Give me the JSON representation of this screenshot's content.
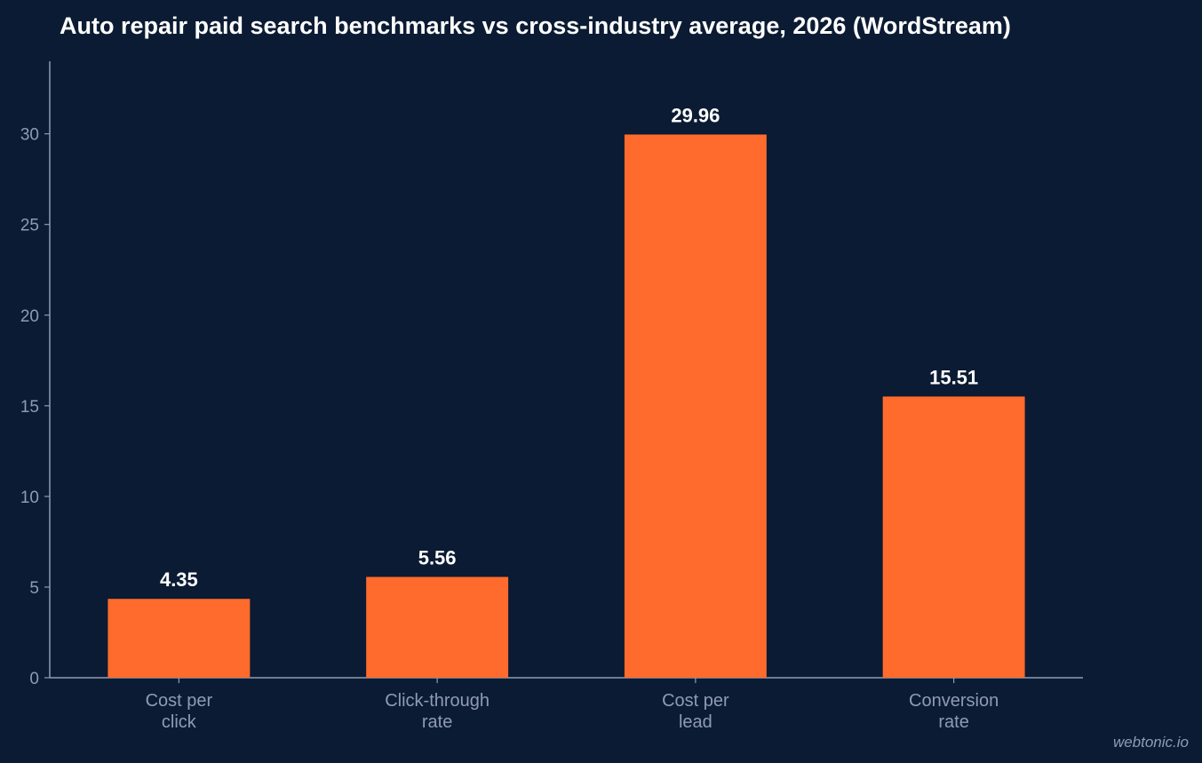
{
  "chart_data": {
    "type": "bar",
    "title": "Auto repair paid search benchmarks vs cross-industry average, 2026 (WordStream)",
    "categories": [
      [
        "Cost per",
        "click"
      ],
      [
        "Click-through",
        "rate"
      ],
      [
        "Cost per",
        "lead"
      ],
      [
        "Conversion",
        "rate"
      ]
    ],
    "values": [
      4.35,
      5.56,
      29.96,
      15.51
    ],
    "value_labels": [
      "4.35",
      "5.56",
      "29.96",
      "15.51"
    ],
    "yticks": [
      0,
      5,
      10,
      15,
      20,
      25,
      30
    ],
    "ylim": [
      0,
      34
    ],
    "grid": false,
    "bar_color": "#ff6b2c"
  },
  "watermark": "webtonic.io"
}
